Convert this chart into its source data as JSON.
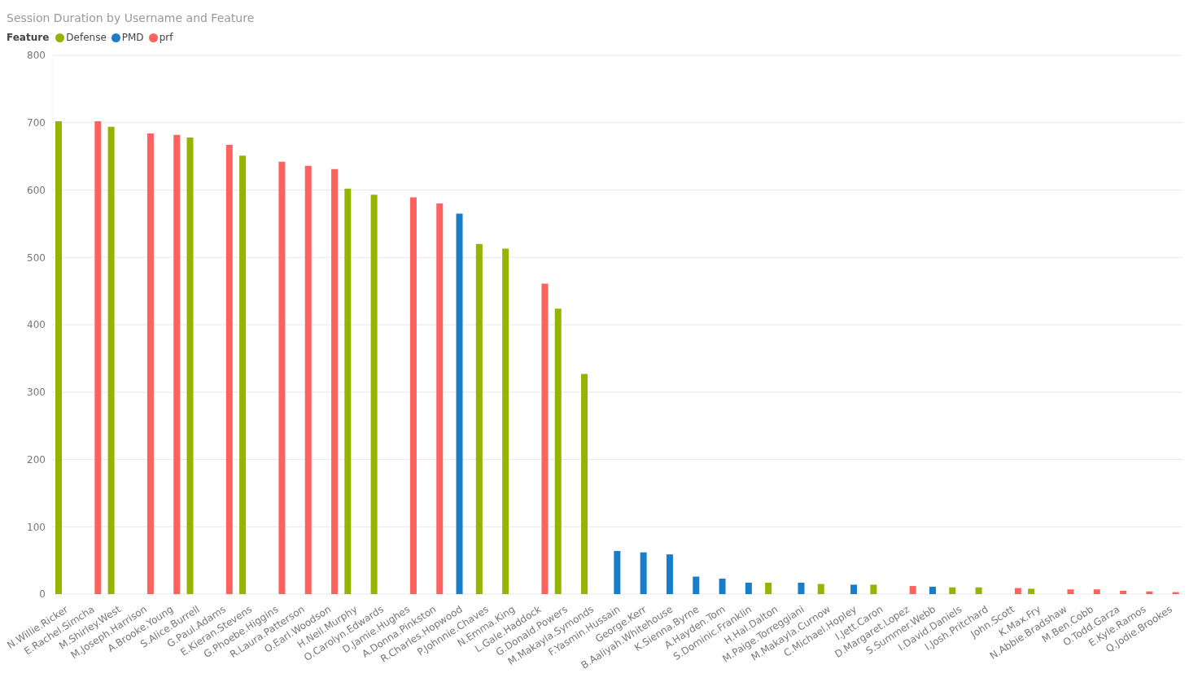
{
  "chart_data": {
    "type": "bar",
    "title": "Session Duration by Username and Feature",
    "legend_title": "Feature",
    "categories": [
      "N.Willie.Ricker",
      "E.Rachel.Simcha",
      "M.Shirley.West",
      "M.Joseph.Harrison",
      "A.Brooke.Young",
      "S.Alice.Burrell",
      "G.Paul.Adams",
      "E.Kieran.Stevens",
      "G.Phoebe.Higgins",
      "R.Laura.Patterson",
      "O.Earl.Woodson",
      "H.Neil.Murphy",
      "O.Carolyn.Edwards",
      "D.Jamie.Hughes",
      "A.Donna.Pinkston",
      "R.Charles.Hopwood",
      "P.Johnnie.Chaves",
      "N.Emma.King",
      "L.Gale.Haddock",
      "G.Donald.Powers",
      "M.Makayla.Symonds",
      "F.Yasmin.Hussain",
      "George.Kerr",
      "B.Aaliyah.Whitehouse",
      "K.Sienna.Byrne",
      "A.Hayden.Tom",
      "S.Dominic.Franklin",
      "H.Hal.Dalton",
      "M.Paige.Torreggiani",
      "M.Makayla.Curnow",
      "C.Michael.Hopley",
      "I.Jett.Caron",
      "D.Margaret.Lopez",
      "S.Summer.Webb",
      "I.David.Daniels",
      "I.Josh.Pritchard",
      "John.Scott",
      "K.Max.Fry",
      "N.Abbie.Bradshaw",
      "M.Ben.Cobb",
      "O.Todd.Garza",
      "E.Kyle.Ramos",
      "Q.Jodie.Brookes"
    ],
    "series": [
      {
        "name": "Defense",
        "color": "#96b300",
        "values": [
          702,
          null,
          694,
          null,
          null,
          678,
          null,
          651,
          null,
          null,
          null,
          602,
          593,
          null,
          null,
          null,
          520,
          513,
          null,
          424,
          327,
          null,
          null,
          null,
          null,
          null,
          null,
          17,
          null,
          15,
          null,
          14,
          null,
          null,
          10,
          10,
          null,
          8,
          null,
          null,
          null,
          null,
          null
        ]
      },
      {
        "name": "PMD",
        "color": "#1a7dc8",
        "values": [
          null,
          null,
          null,
          null,
          null,
          null,
          null,
          null,
          null,
          null,
          null,
          null,
          null,
          null,
          null,
          565,
          null,
          null,
          null,
          null,
          null,
          64,
          62,
          59,
          26,
          23,
          17,
          null,
          17,
          null,
          14,
          null,
          null,
          11,
          null,
          null,
          null,
          null,
          null,
          null,
          null,
          null,
          null
        ]
      },
      {
        "name": "prf",
        "color": "#fd625e",
        "values": [
          null,
          702,
          null,
          684,
          682,
          null,
          667,
          null,
          642,
          636,
          631,
          null,
          null,
          589,
          580,
          null,
          null,
          null,
          461,
          null,
          null,
          null,
          null,
          null,
          null,
          null,
          null,
          null,
          null,
          null,
          null,
          null,
          12,
          null,
          null,
          null,
          9,
          null,
          7,
          7,
          5,
          4,
          3
        ]
      }
    ],
    "ylim": [
      0,
      800
    ],
    "yticks": [
      0,
      100,
      200,
      300,
      400,
      500,
      600,
      700,
      800
    ],
    "grid": "y",
    "legend": "top left"
  }
}
